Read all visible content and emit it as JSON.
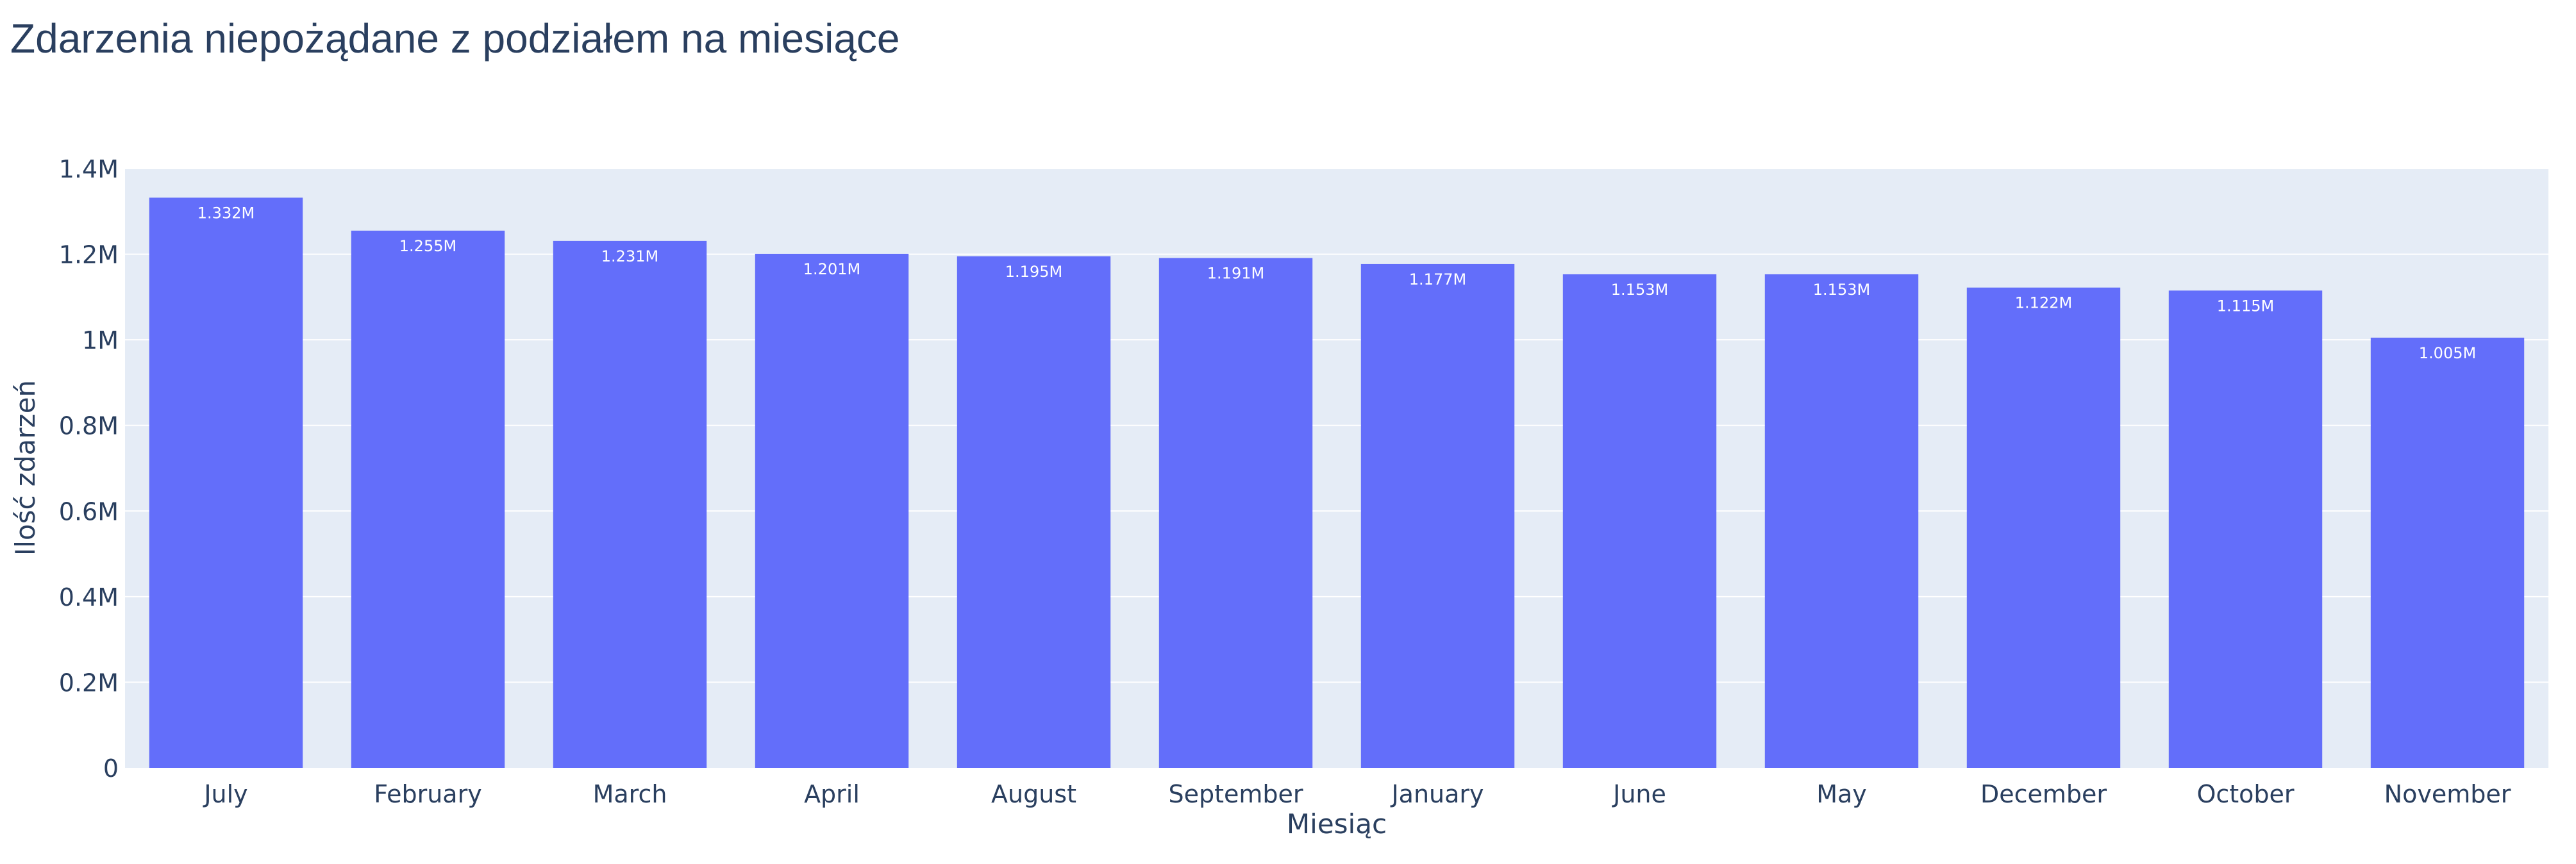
{
  "chart_data": {
    "type": "bar",
    "title": "Zdarzenia niepożądane z podziałem na miesiące",
    "xlabel": "Miesiąc",
    "ylabel": "Ilość zdarzeń",
    "categories": [
      "July",
      "February",
      "March",
      "April",
      "August",
      "September",
      "January",
      "June",
      "May",
      "December",
      "October",
      "November"
    ],
    "values": [
      1332000,
      1255000,
      1231000,
      1201000,
      1195000,
      1191000,
      1177000,
      1153000,
      1153000,
      1122000,
      1115000,
      1005000
    ],
    "data_labels": [
      "1.332M",
      "1.255M",
      "1.231M",
      "1.201M",
      "1.195M",
      "1.191M",
      "1.177M",
      "1.153M",
      "1.153M",
      "1.122M",
      "1.115M",
      "1.005M"
    ],
    "ylim": [
      0,
      1400000
    ],
    "yticks": [
      0,
      200000,
      400000,
      600000,
      800000,
      1000000,
      1200000,
      1400000
    ],
    "ytick_labels": [
      "0",
      "0.2M",
      "0.4M",
      "0.6M",
      "0.8M",
      "1M",
      "1.2M",
      "1.4M"
    ],
    "grid": true,
    "colors": {
      "bar": "#636efa",
      "plot_bg": "#e5ecf6",
      "grid": "#ffffff",
      "text": "#2a3f5f"
    }
  }
}
